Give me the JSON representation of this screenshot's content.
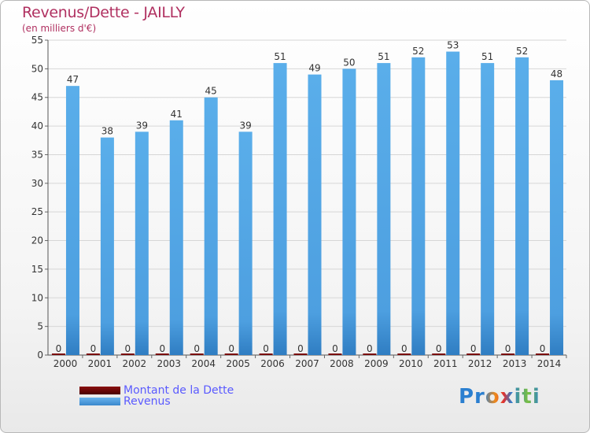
{
  "title": "Revenus/Dette - JAILLY",
  "subtitle": "(en milliers d'€)",
  "legend": {
    "debt_label": "Montant de la Dette",
    "revenue_label": "Revenus"
  },
  "logo": {
    "text": "Proxiti"
  },
  "colors": {
    "revenue": "#4a9de0",
    "debt": "#6b0000",
    "title": "#b03060"
  },
  "chart_data": {
    "type": "bar",
    "title": "Revenus/Dette - JAILLY",
    "ylabel": "(en milliers d'€)",
    "xlabel": "",
    "ylim": [
      0,
      55
    ],
    "yticks": [
      0,
      5,
      10,
      15,
      20,
      25,
      30,
      35,
      40,
      45,
      50,
      55
    ],
    "categories": [
      "2000",
      "2001",
      "2002",
      "2003",
      "2004",
      "2005",
      "2006",
      "2007",
      "2008",
      "2009",
      "2010",
      "2011",
      "2012",
      "2013",
      "2014"
    ],
    "series": [
      {
        "name": "Montant de la Dette",
        "values": [
          0,
          0,
          0,
          0,
          0,
          0,
          0,
          0,
          0,
          0,
          0,
          0,
          0,
          0,
          0
        ]
      },
      {
        "name": "Revenus",
        "values": [
          47,
          38,
          39,
          41,
          45,
          39,
          51,
          49,
          50,
          51,
          52,
          53,
          51,
          52,
          48
        ]
      }
    ],
    "legend_position": "bottom-left"
  }
}
